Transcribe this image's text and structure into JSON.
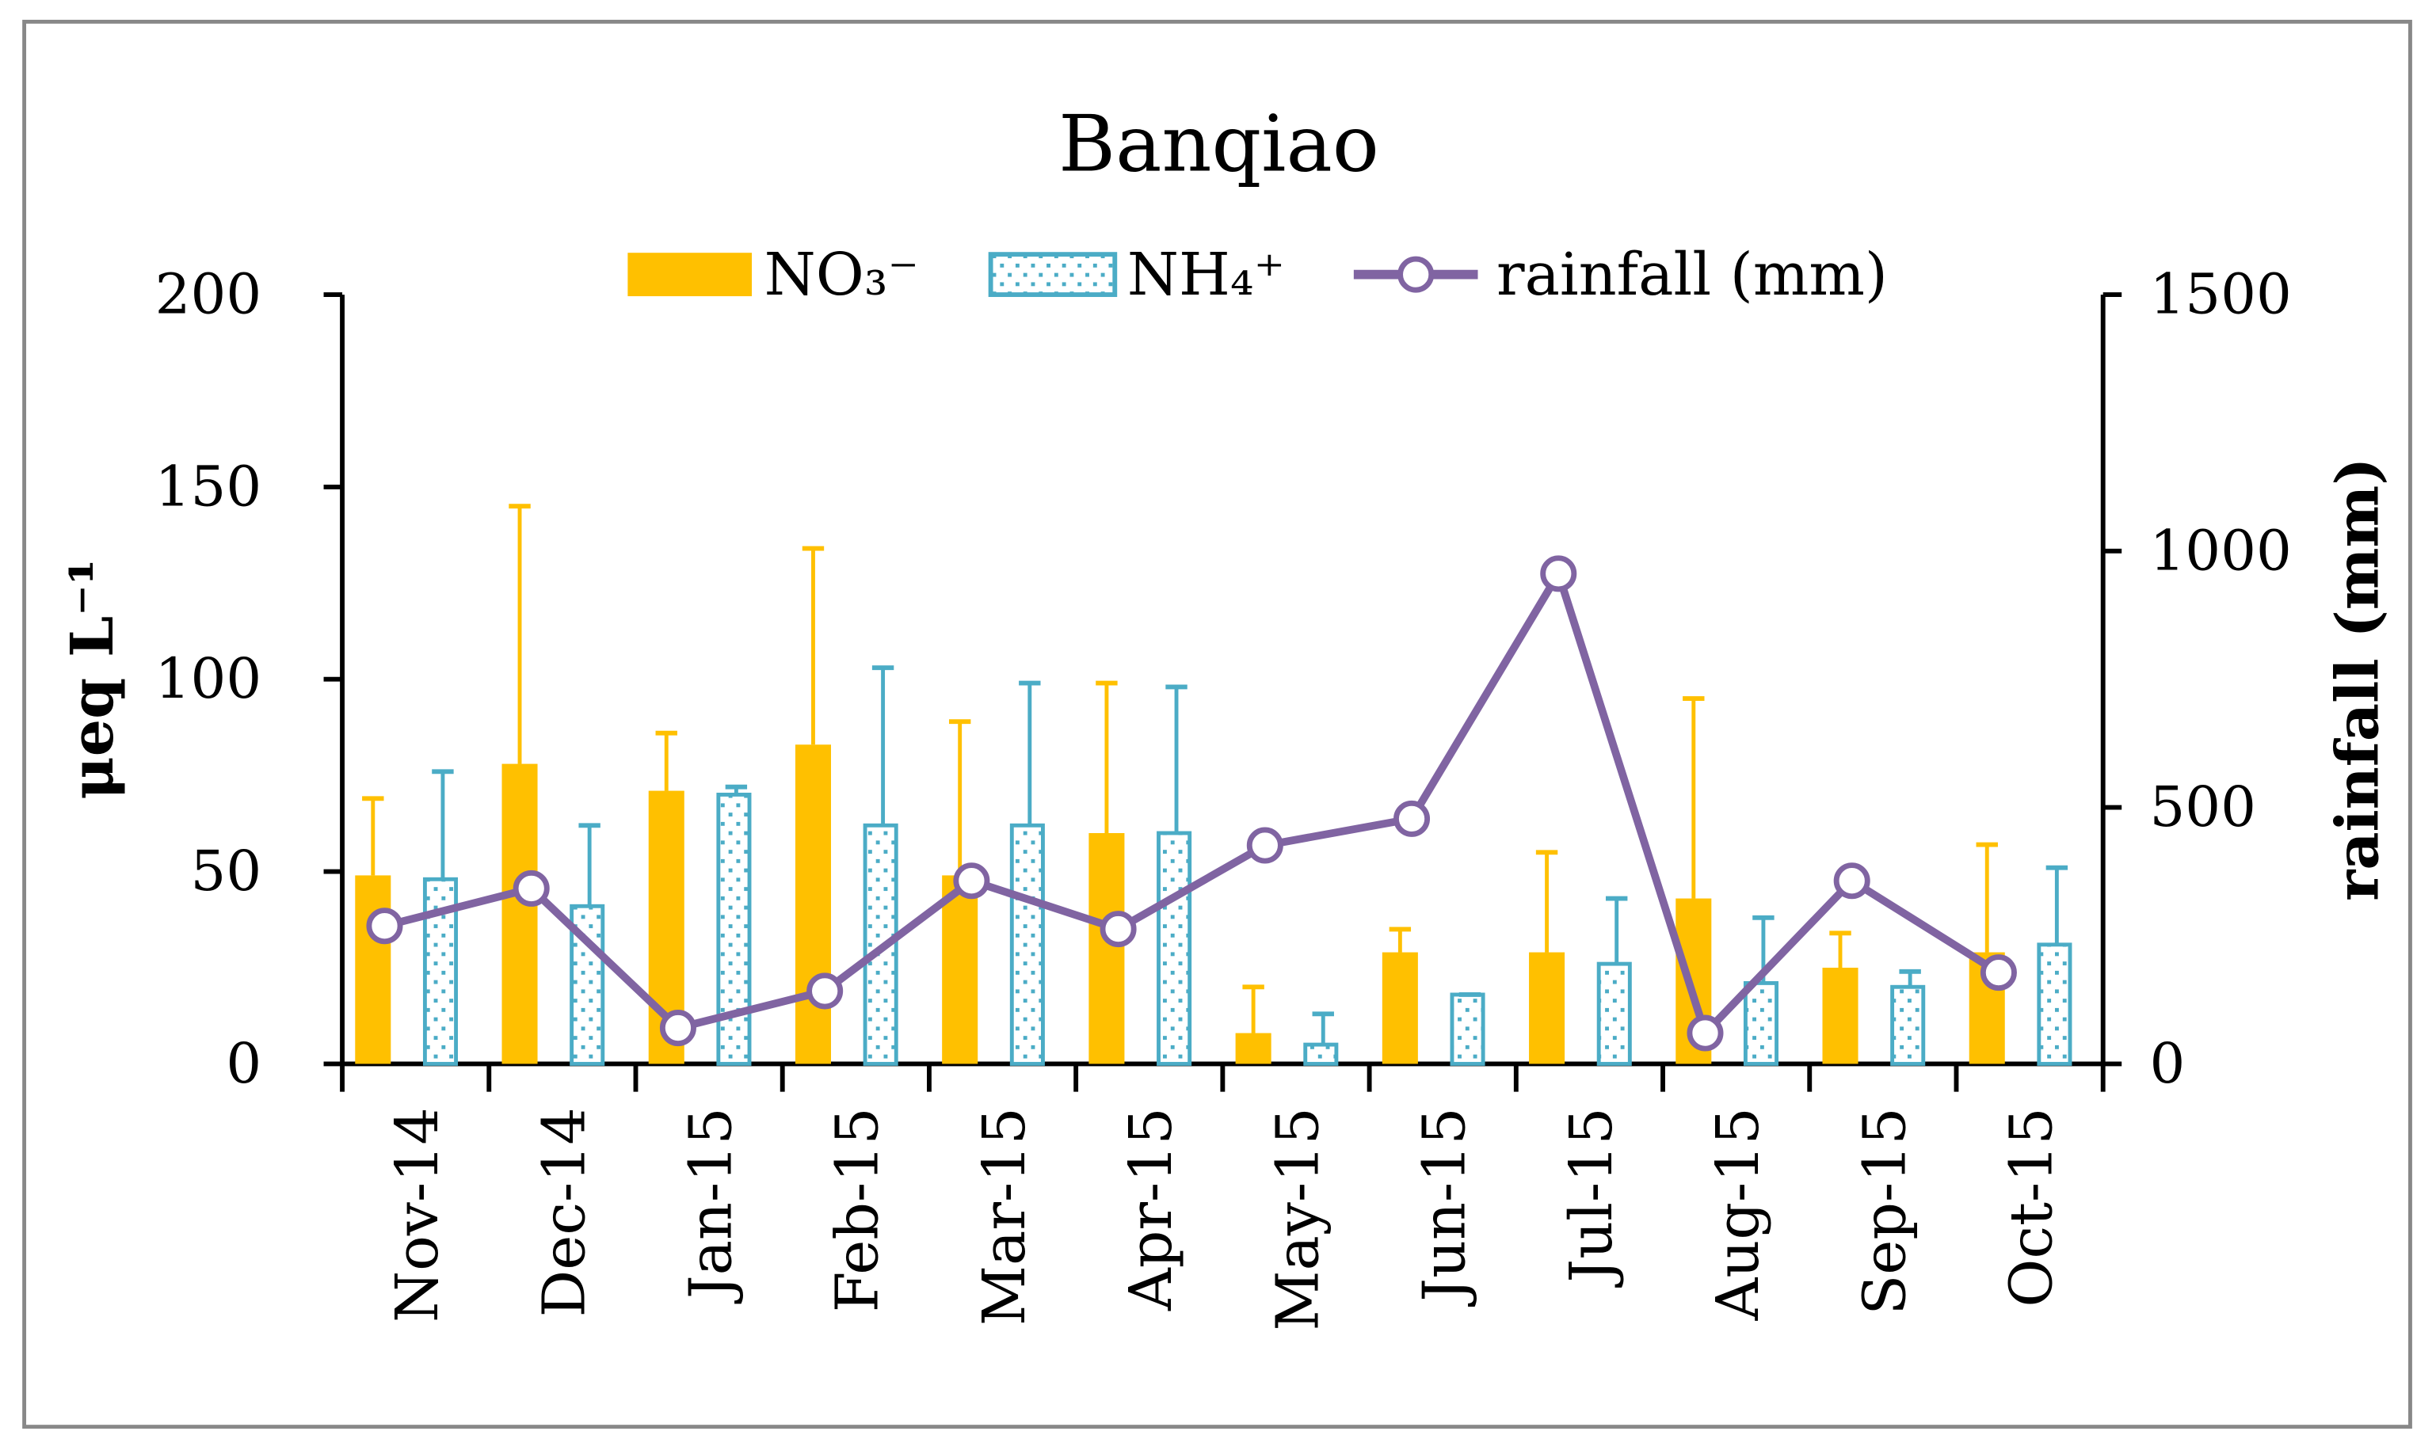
{
  "chart_data": {
    "type": "bar",
    "title": "Banqiao",
    "categories": [
      "Nov-14",
      "Dec-14",
      "Jan-15",
      "Feb-15",
      "Mar-15",
      "Apr-15",
      "May-15",
      "Jun-15",
      "Jul-15",
      "Aug-15",
      "Sep-15",
      "Oct-15"
    ],
    "ylabel": "μeq L⁻¹",
    "y2label": "rainfall (mm)",
    "ylim": [
      0,
      200
    ],
    "y2lim": [
      0,
      1500
    ],
    "yticks": [
      0,
      50,
      100,
      150,
      200
    ],
    "y2ticks": [
      0,
      500,
      1000,
      1500
    ],
    "legend_position": "top",
    "grid": false,
    "series": [
      {
        "name": "NO₃⁻",
        "kind": "bar",
        "color": "#FFC000",
        "values": [
          49,
          78,
          71,
          83,
          49,
          60,
          8,
          29,
          29,
          43,
          25,
          29
        ],
        "error_upper": [
          69,
          145,
          86,
          134,
          89,
          99,
          20,
          35,
          55,
          95,
          34,
          57
        ]
      },
      {
        "name": "NH₄⁺",
        "kind": "bar-dotted",
        "color": "#4BACC6",
        "values": [
          48,
          41,
          70,
          62,
          62,
          60,
          5,
          18,
          26,
          21,
          20,
          31
        ],
        "error_upper": [
          76,
          62,
          72,
          103,
          99,
          98,
          13,
          18,
          43,
          38,
          24,
          51
        ]
      },
      {
        "name": "rainfall (mm)",
        "kind": "line",
        "axis": "right",
        "color": "#8064A2",
        "values": [
          269,
          342,
          70,
          142,
          357,
          263,
          426,
          478,
          956,
          60,
          357,
          178
        ]
      }
    ]
  }
}
